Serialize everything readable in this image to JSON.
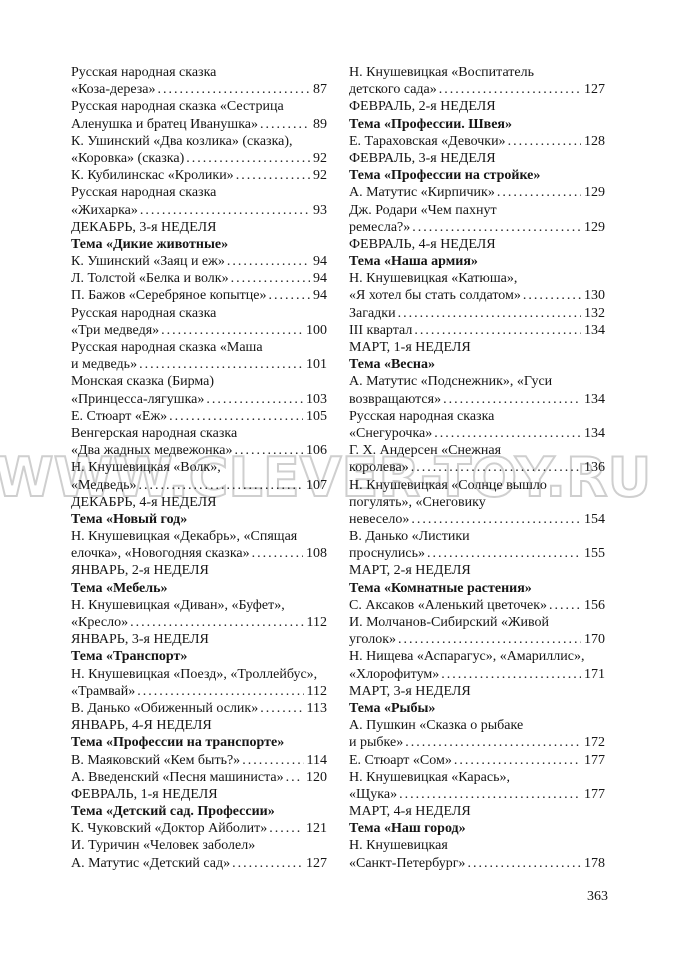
{
  "page": {
    "number": "363"
  },
  "watermark": {
    "text": "WWW.CLEVER-TOY.RU",
    "stroke_color": "#a8a8a8"
  },
  "columns": {
    "left": [
      {
        "text": "Русская народная сказка"
      },
      {
        "text": "«Коза-дереза»",
        "page": "87"
      },
      {
        "text": "Русская народная сказка «Сестрица"
      },
      {
        "text": "Аленушка и братец Иванушка»",
        "page": "89"
      },
      {
        "text": "К. Ушинский «Два козлика» (сказка),"
      },
      {
        "text": "«Коровка» (сказка)",
        "page": "92"
      },
      {
        "text": "К. Кубилинскас «Кролики»",
        "page": "92"
      },
      {
        "text": "Русская народная сказка"
      },
      {
        "text": "«Жихарка»",
        "page": "93"
      },
      {
        "text": "ДЕКАБРЬ, 3-я НЕДЕЛЯ"
      },
      {
        "text": "Тема «Дикие животные»",
        "bold": true
      },
      {
        "text": "К. Ушинский «Заяц и еж»",
        "page": "94"
      },
      {
        "text": "Л. Толстой «Белка и волк»",
        "page": "94"
      },
      {
        "text": "П. Бажов «Серебряное копытце»",
        "page": "94"
      },
      {
        "text": "Русская народная сказка"
      },
      {
        "text": "«Три медведя»",
        "page": "100"
      },
      {
        "text": "Русская народная сказка «Маша"
      },
      {
        "text": "и медведь»",
        "page": "101"
      },
      {
        "text": "Монская сказка (Бирма)"
      },
      {
        "text": "«Принцесса-лягушка»",
        "page": "103"
      },
      {
        "text": "Е. Стюарт «Еж»",
        "page": "105"
      },
      {
        "text": "Венгерская народная сказка"
      },
      {
        "text": "«Два жадных медвежонка»",
        "page": "106"
      },
      {
        "text": "Н. Кнушевицкая «Волк»,"
      },
      {
        "text": "«Медведь»",
        "page": "107"
      },
      {
        "text": "ДЕКАБРЬ, 4-я НЕДЕЛЯ"
      },
      {
        "text": "Тема «Новый год»",
        "bold": true
      },
      {
        "text": "Н. Кнушевицкая «Декабрь», «Спящая"
      },
      {
        "text": "елочка», «Новогодняя сказка»",
        "page": "108"
      },
      {
        "text": "ЯНВАРЬ, 2-я НЕДЕЛЯ"
      },
      {
        "text": "Тема «Мебель»",
        "bold": true
      },
      {
        "text": "Н. Кнушевицкая «Диван», «Буфет»,"
      },
      {
        "text": "«Кресло»",
        "page": "112"
      },
      {
        "text": "ЯНВАРЬ, 3-я НЕДЕЛЯ"
      },
      {
        "text": "Тема «Транспорт»",
        "bold": true
      },
      {
        "text": "Н. Кнушевицкая «Поезд», «Троллейбус»,"
      },
      {
        "text": "«Трамвай»",
        "page": "112"
      },
      {
        "text": "В. Данько «Обиженный ослик»",
        "page": "113"
      },
      {
        "text": "ЯНВАРЬ, 4-Я НЕДЕЛЯ"
      },
      {
        "text": "Тема «Профессии на транспорте»",
        "bold": true
      },
      {
        "text": "В. Маяковский «Кем быть?»",
        "page": "114"
      },
      {
        "text": "А. Введенский «Песня машиниста»",
        "page": "120"
      },
      {
        "text": "ФЕВРАЛЬ, 1-я НЕДЕЛЯ"
      },
      {
        "text": "Тема «Детский сад. Профессии»",
        "bold": true
      },
      {
        "text": "К. Чуковский «Доктор Айболит»",
        "page": "121"
      },
      {
        "text": "И. Туричин «Человек заболел»"
      },
      {
        "text": "А. Матутис «Детский сад»",
        "page": "127"
      }
    ],
    "right": [
      {
        "text": "Н. Кнушевицкая «Воспитатель"
      },
      {
        "text": "детского сада»",
        "page": "127"
      },
      {
        "text": "ФЕВРАЛЬ, 2-я НЕДЕЛЯ"
      },
      {
        "text": "Тема «Профессии. Швея»",
        "bold": true
      },
      {
        "text": "Е. Тараховская «Девочки»",
        "page": "128"
      },
      {
        "text": "ФЕВРАЛЬ, 3-я НЕДЕЛЯ"
      },
      {
        "text": "Тема «Профессии на стройке»",
        "bold": true
      },
      {
        "text": "А. Матутис «Кирпичик»",
        "page": "129"
      },
      {
        "text": "Дж. Родари «Чем пахнут"
      },
      {
        "text": "ремесла?»",
        "page": "129"
      },
      {
        "text": "ФЕВРАЛЬ, 4-я НЕДЕЛЯ"
      },
      {
        "text": "Тема «Наша армия»",
        "bold": true
      },
      {
        "text": "Н. Кнушевицкая «Катюша»,"
      },
      {
        "text": "«Я хотел бы стать солдатом»",
        "page": "130"
      },
      {
        "text": "Загадки",
        "page": "132"
      },
      {
        "text": "III квартал",
        "page": "134"
      },
      {
        "text": "МАРТ, 1-я НЕДЕЛЯ"
      },
      {
        "text": "Тема «Весна»",
        "bold": true
      },
      {
        "text": "А. Матутис «Подснежник», «Гуси"
      },
      {
        "text": "возвращаются»",
        "page": "134"
      },
      {
        "text": "Русская народная сказка"
      },
      {
        "text": "«Снегурочка»",
        "page": "134"
      },
      {
        "text": "Г. Х. Андерсен «Снежная"
      },
      {
        "text": "королева»",
        "page": "136"
      },
      {
        "text": "Н. Кнушевицкая «Солнце вышло"
      },
      {
        "text": "погулять», «Снеговику"
      },
      {
        "text": "невесело»",
        "page": "154"
      },
      {
        "text": "В. Данько «Листики"
      },
      {
        "text": "проснулись»",
        "page": "155"
      },
      {
        "text": "МАРТ, 2-я НЕДЕЛЯ"
      },
      {
        "text": "Тема «Комнатные растения»",
        "bold": true
      },
      {
        "text": "С. Аксаков «Аленький цветочек»",
        "page": "156"
      },
      {
        "text": "И. Молчанов-Сибирский «Живой"
      },
      {
        "text": "уголок»",
        "page": "170"
      },
      {
        "text": "Н. Нищева «Аспарагус», «Амариллис»,"
      },
      {
        "text": "«Хлорофитум»",
        "page": "171"
      },
      {
        "text": "МАРТ, 3-я НЕДЕЛЯ"
      },
      {
        "text": "Тема «Рыбы»",
        "bold": true
      },
      {
        "text": "А. Пушкин «Сказка о рыбаке"
      },
      {
        "text": "и рыбке»",
        "page": "172"
      },
      {
        "text": "Е. Стюарт «Сом»",
        "page": "177"
      },
      {
        "text": "Н. Кнушевицкая «Карась»,"
      },
      {
        "text": "«Щука»",
        "page": "177"
      },
      {
        "text": "МАРТ, 4-я НЕДЕЛЯ"
      },
      {
        "text": "Тема «Наш город»",
        "bold": true
      },
      {
        "text": "Н. Кнушевицкая"
      },
      {
        "text": "«Санкт-Петербург»",
        "page": "178"
      }
    ]
  }
}
